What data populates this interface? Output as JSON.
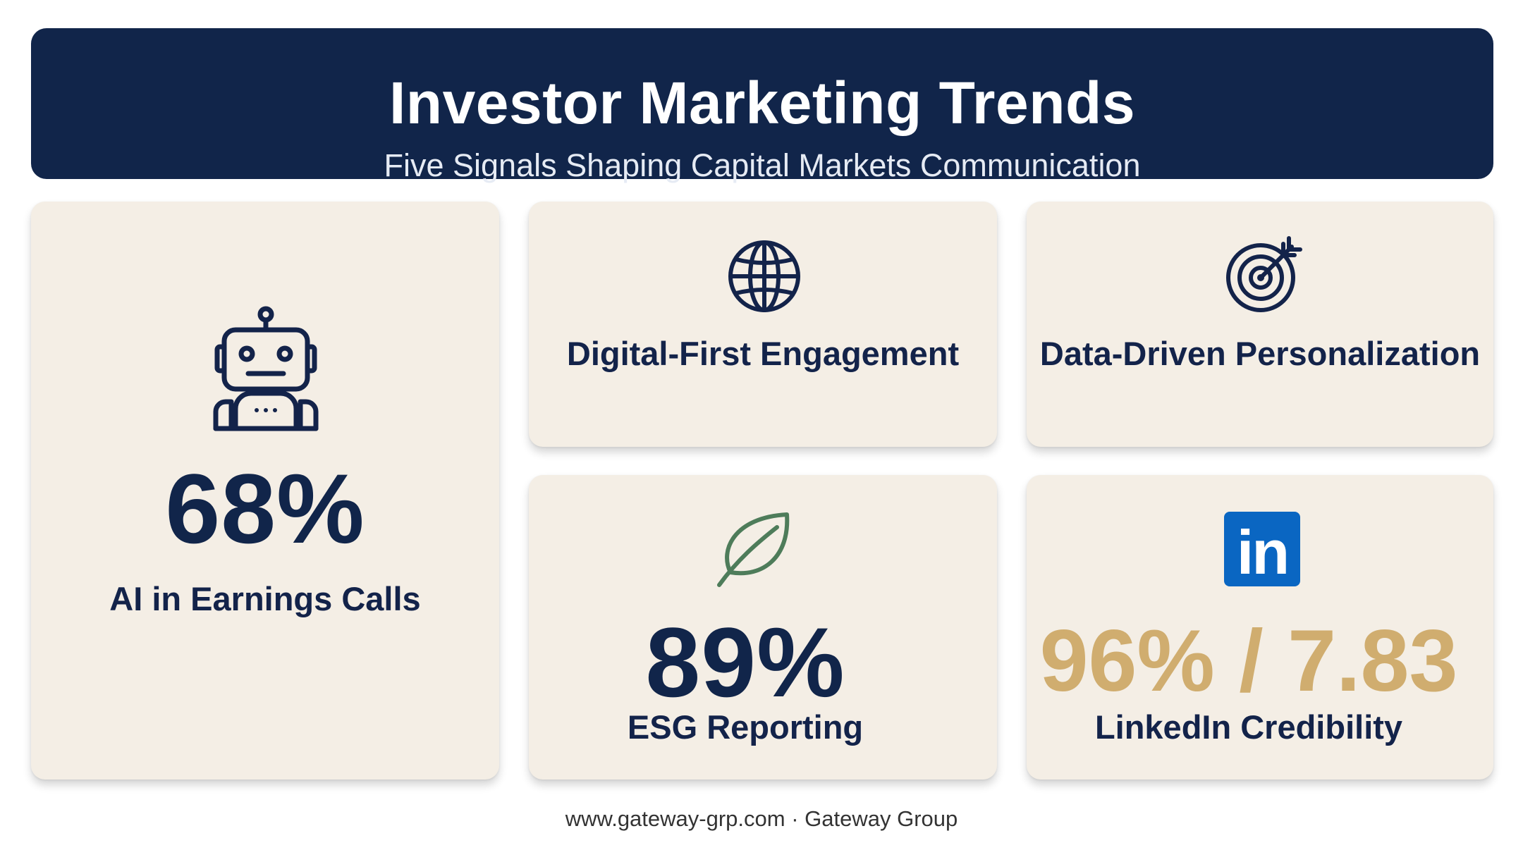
{
  "header": {
    "title": "Investor Marketing Trends",
    "subtitle": "Five Signals Shaping Capital Markets Communication"
  },
  "cards": [
    {
      "icon": "robot-icon",
      "stat": "68%",
      "label": "AI in Earnings Calls"
    },
    {
      "icon": "globe-icon",
      "label": "Digital-First Engagement"
    },
    {
      "icon": "target-icon",
      "label": "Data-Driven Personalization"
    },
    {
      "icon": "leaf-icon",
      "stat": "89%",
      "label": "ESG Reporting"
    },
    {
      "icon": "linkedin-icon",
      "icon_text": "in",
      "stat": "96% / 7.83",
      "label": "LinkedIn Credibility"
    }
  ],
  "footer": "www.gateway-grp.com · Gateway Group",
  "colors": {
    "navy": "#11254a",
    "card_bg": "#f4eee5",
    "gold": "#d0ad6f",
    "leaf_green": "#4e7c5a",
    "linkedin_blue": "#0a66c2"
  }
}
